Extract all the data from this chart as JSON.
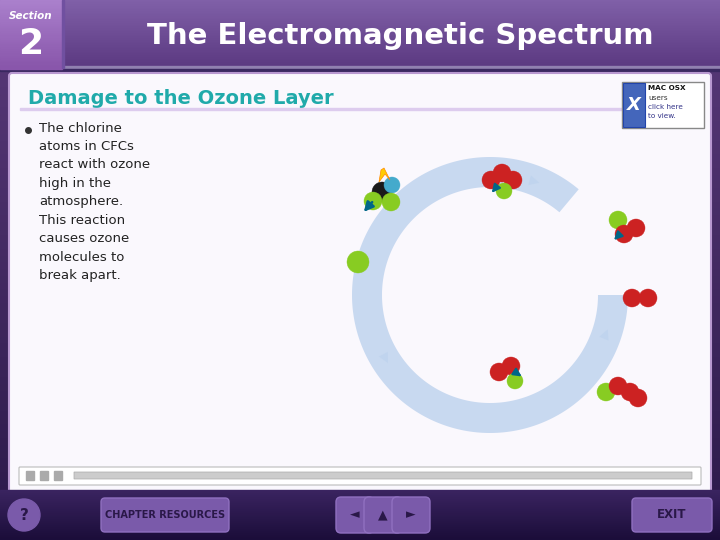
{
  "title": "The Electromagnetic Spectrum",
  "section_label": "Section",
  "section_number": "2",
  "slide_title": "Damage to the Ozone Layer",
  "bullet_text": [
    "The chlorine",
    "atoms in CFCs",
    "react with ozone",
    "high in the",
    "atmosphere.",
    "This reaction",
    "causes ozone",
    "molecules to",
    "break apart."
  ],
  "bg_top": "#5a3a7a",
  "bg_bottom": "#2a1848",
  "header_left": "#8060a8",
  "header_right": "#5a3880",
  "section_box": "#9970b8",
  "content_bg": "#f8f6fc",
  "content_border": "#b090cc",
  "slide_title_color": "#20aaaa",
  "bullet_color": "#222222",
  "footer_bg_top": "#3a2460",
  "footer_bg_bottom": "#1a0c38",
  "footer_btn_color": "#7a5aaa",
  "footer_btn_border": "#9070c0",
  "arrow_color": "#006688",
  "arc_color": "#c0d4ee",
  "green": "#88cc22",
  "red": "#cc2222",
  "dark_gray": "#1a1a1a",
  "teal": "#44aacc",
  "flame_yellow": "#ffcc00",
  "flame_orange": "#ff8800"
}
